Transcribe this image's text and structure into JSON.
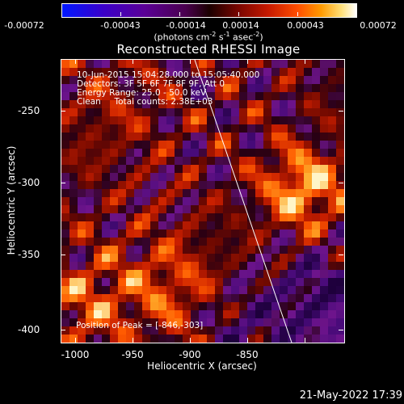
{
  "colorbar": {
    "ticks": [
      "-0.00072",
      "-0.00043",
      "-0.00014",
      "0.00014",
      "0.00043",
      "0.00072"
    ],
    "units_prefix": "(photons cm",
    "units_sup1": "-2",
    "units_mid1": " s",
    "units_sup2": "-1",
    "units_mid2": " asec",
    "units_sup3": "-2",
    "units_suffix": ")",
    "colors": [
      "#0018ff",
      "#5a0096",
      "#1b0000",
      "#c61900",
      "#ff9a00",
      "#ffffff"
    ]
  },
  "title": "Reconstructed RHESSI Image",
  "info": {
    "time_range": "10-Jun-2015 15:04:28.000 to 15:05:40.000",
    "detectors": "Detectors: 3F 5F 6F 7F 8F 9F, Att 0",
    "energy": "Energy Range: 25.0 - 50.0 keV",
    "clean": "Clean     Total counts: 2.38E+03"
  },
  "peak": "Position of Peak = [-846,-303]",
  "axes": {
    "xlabel": "Heliocentric X (arcsec)",
    "ylabel": "Heliocentric Y (arcsec)",
    "x_ticks": [
      "-1000",
      "-950",
      "-900",
      "-850"
    ],
    "y_ticks": [
      "-250",
      "-300",
      "-350",
      "-400"
    ]
  },
  "timestamp": "21-May-2022 17:39"
}
